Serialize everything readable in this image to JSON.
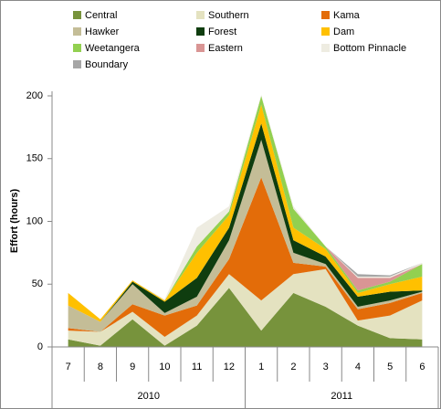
{
  "chart_data": {
    "type": "stacked_area",
    "y_label": "Effort (hours)",
    "categories": [
      "7",
      "8",
      "9",
      "10",
      "11",
      "12",
      "1",
      "2",
      "3",
      "4",
      "5",
      "6"
    ],
    "year_groups": [
      {
        "label": "2010",
        "count": 6
      },
      {
        "label": "2011",
        "count": 6
      }
    ],
    "ylim": [
      0,
      200
    ],
    "yticks": [
      0,
      50,
      100,
      150,
      200
    ],
    "grid": false,
    "legend": "top",
    "series": [
      {
        "name": "Central",
        "color": "#77933c",
        "values": [
          6,
          1,
          22,
          1,
          17,
          47,
          13,
          43,
          32,
          17,
          7,
          6
        ]
      },
      {
        "name": "Southern",
        "color": "#e4e2c0",
        "values": [
          7,
          11,
          6,
          7,
          8,
          11,
          24,
          15,
          30,
          4,
          18,
          31
        ]
      },
      {
        "name": "Kama",
        "color": "#e36c09",
        "values": [
          2,
          0,
          6,
          17,
          8,
          12,
          98,
          9,
          2,
          9,
          10,
          6
        ]
      },
      {
        "name": "Hawker",
        "color": "#c4bd97",
        "values": [
          18,
          8,
          16,
          2,
          7,
          15,
          30,
          8,
          2,
          2,
          2,
          1
        ]
      },
      {
        "name": "Forest",
        "color": "#0f3d0f",
        "values": [
          0,
          0,
          2,
          9,
          15,
          10,
          13,
          10,
          6,
          8,
          7,
          1
        ]
      },
      {
        "name": "Dam",
        "color": "#ffc000",
        "values": [
          10,
          2,
          1,
          1,
          20,
          10,
          15,
          10,
          6,
          3,
          6,
          11
        ]
      },
      {
        "name": "Weetangera",
        "color": "#92d050",
        "values": [
          0,
          0,
          0,
          0,
          5,
          3,
          7,
          15,
          2,
          2,
          2,
          10
        ]
      },
      {
        "name": "Eastern",
        "color": "#d99594",
        "values": [
          0,
          0,
          0,
          0,
          0,
          0,
          0,
          0,
          0,
          10,
          3,
          0
        ]
      },
      {
        "name": "Bottom Pinnacle",
        "color": "#eeece1",
        "values": [
          0,
          0,
          0,
          1,
          15,
          4,
          1,
          2,
          0,
          1,
          1,
          1
        ]
      },
      {
        "name": "Boundary",
        "color": "#a6a6a6",
        "values": [
          0,
          0,
          0,
          0,
          0,
          0,
          0,
          0,
          0,
          2,
          1,
          0
        ]
      }
    ]
  }
}
